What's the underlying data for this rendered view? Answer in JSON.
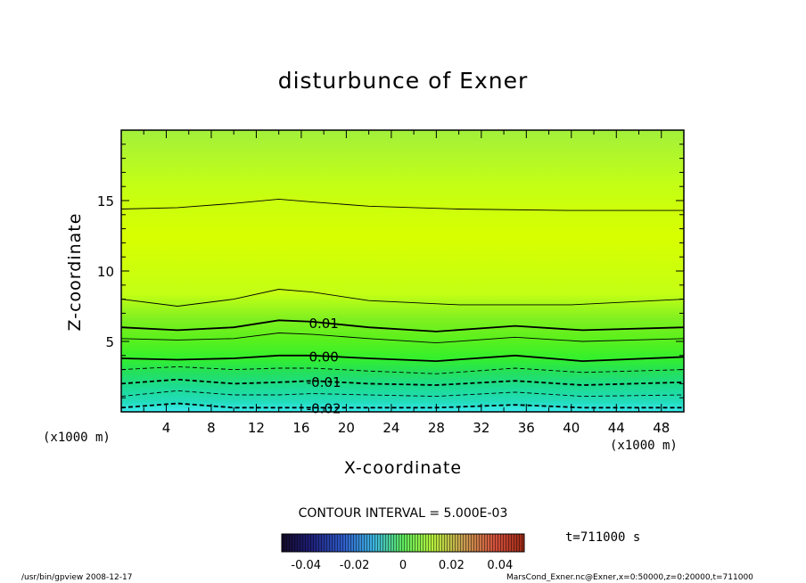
{
  "chart_data": {
    "type": "heatmap",
    "title": "disturbunce of Exner",
    "xlabel": "X-coordinate",
    "ylabel": "Z-coordinate",
    "x_unit": "(x1000 m)",
    "x_unit_right": "(x1000 m)",
    "xlim": [
      0,
      50
    ],
    "ylim": [
      0,
      20
    ],
    "x_ticks": [
      "4",
      "8",
      "12",
      "16",
      "20",
      "24",
      "28",
      "32",
      "36",
      "40",
      "44",
      "48"
    ],
    "y_ticks": [
      "5",
      "10",
      "15"
    ],
    "contour_interval_label": "CONTOUR INTERVAL = 5.000E-03",
    "contour_interval": 0.005,
    "contours": [
      {
        "level": 0.02,
        "label": "",
        "style": "solid",
        "points": [
          [
            0,
            14.4
          ],
          [
            5,
            14.5
          ],
          [
            10,
            14.8
          ],
          [
            14,
            15.1
          ],
          [
            17,
            14.9
          ],
          [
            22,
            14.6
          ],
          [
            30,
            14.4
          ],
          [
            40,
            14.3
          ],
          [
            50,
            14.3
          ]
        ]
      },
      {
        "level": 0.015,
        "label": "",
        "style": "solid",
        "points": [
          [
            0,
            8.0
          ],
          [
            5,
            7.5
          ],
          [
            10,
            8.0
          ],
          [
            14,
            8.7
          ],
          [
            17,
            8.5
          ],
          [
            22,
            7.9
          ],
          [
            30,
            7.6
          ],
          [
            40,
            7.6
          ],
          [
            50,
            8.0
          ]
        ]
      },
      {
        "level": 0.01,
        "label": "0.01",
        "style": "solid",
        "points": [
          [
            0,
            6.0
          ],
          [
            5,
            5.8
          ],
          [
            10,
            6.0
          ],
          [
            14,
            6.5
          ],
          [
            17,
            6.4
          ],
          [
            22,
            6.0
          ],
          [
            28,
            5.7
          ],
          [
            35,
            6.1
          ],
          [
            41,
            5.8
          ],
          [
            50,
            6.0
          ]
        ]
      },
      {
        "level": 0.005,
        "label": "",
        "style": "solid",
        "points": [
          [
            0,
            5.2
          ],
          [
            5,
            5.1
          ],
          [
            10,
            5.2
          ],
          [
            14,
            5.6
          ],
          [
            17,
            5.5
          ],
          [
            22,
            5.2
          ],
          [
            28,
            4.9
          ],
          [
            35,
            5.3
          ],
          [
            41,
            5.0
          ],
          [
            50,
            5.2
          ]
        ]
      },
      {
        "level": 0.0,
        "label": "0.00",
        "style": "solid",
        "points": [
          [
            0,
            3.8
          ],
          [
            5,
            3.7
          ],
          [
            10,
            3.8
          ],
          [
            14,
            4.0
          ],
          [
            17,
            4.0
          ],
          [
            22,
            3.8
          ],
          [
            28,
            3.6
          ],
          [
            35,
            4.0
          ],
          [
            41,
            3.6
          ],
          [
            50,
            3.9
          ]
        ]
      },
      {
        "level": -0.005,
        "label": "",
        "style": "dashed",
        "points": [
          [
            0,
            3.0
          ],
          [
            5,
            3.2
          ],
          [
            10,
            3.0
          ],
          [
            14,
            3.1
          ],
          [
            17,
            3.1
          ],
          [
            22,
            2.9
          ],
          [
            28,
            2.7
          ],
          [
            35,
            3.1
          ],
          [
            41,
            2.8
          ],
          [
            50,
            3.0
          ]
        ]
      },
      {
        "level": -0.01,
        "label": "-0.01",
        "style": "dashed",
        "points": [
          [
            0,
            2.0
          ],
          [
            5,
            2.3
          ],
          [
            10,
            2.0
          ],
          [
            14,
            2.1
          ],
          [
            17,
            2.2
          ],
          [
            22,
            2.0
          ],
          [
            28,
            1.9
          ],
          [
            35,
            2.2
          ],
          [
            41,
            1.9
          ],
          [
            50,
            2.1
          ]
        ]
      },
      {
        "level": -0.015,
        "label": "",
        "style": "dashed",
        "points": [
          [
            0,
            1.1
          ],
          [
            5,
            1.5
          ],
          [
            10,
            1.2
          ],
          [
            14,
            1.2
          ],
          [
            17,
            1.3
          ],
          [
            22,
            1.2
          ],
          [
            28,
            1.1
          ],
          [
            35,
            1.4
          ],
          [
            41,
            1.1
          ],
          [
            50,
            1.2
          ]
        ]
      },
      {
        "level": -0.02,
        "label": "-0.02",
        "style": "dashed",
        "points": [
          [
            0,
            0.3
          ],
          [
            5,
            0.6
          ],
          [
            10,
            0.3
          ],
          [
            14,
            0.3
          ],
          [
            17,
            0.3
          ],
          [
            22,
            0.3
          ],
          [
            28,
            0.3
          ],
          [
            35,
            0.5
          ],
          [
            41,
            0.3
          ],
          [
            50,
            0.3
          ]
        ]
      }
    ],
    "colorbar": {
      "min": -0.05,
      "max": 0.05,
      "tick_labels": [
        "-0.04",
        "-0.02",
        "0",
        "0.02",
        "0.04"
      ],
      "tick_values": [
        -0.04,
        -0.02,
        0,
        0.02,
        0.04
      ]
    },
    "time_label": "t=711000 s",
    "colors": {
      "top": "#a2f03c",
      "mid": "#d8ff00",
      "band_8": "#c4ff14",
      "band_6": "#80f020",
      "band_5": "#5cf01c",
      "band_4": "#34f02c",
      "band_3": "#24e05c",
      "band_2": "#1cdc90",
      "band_1": "#22dcbc",
      "bottom": "#3cecf0"
    }
  },
  "footer": {
    "left": "/usr/bin/gpview   2008-12-17",
    "right": "MarsCond_Exner.nc@Exner,x=0:50000,z=0:20000,t=711000"
  }
}
